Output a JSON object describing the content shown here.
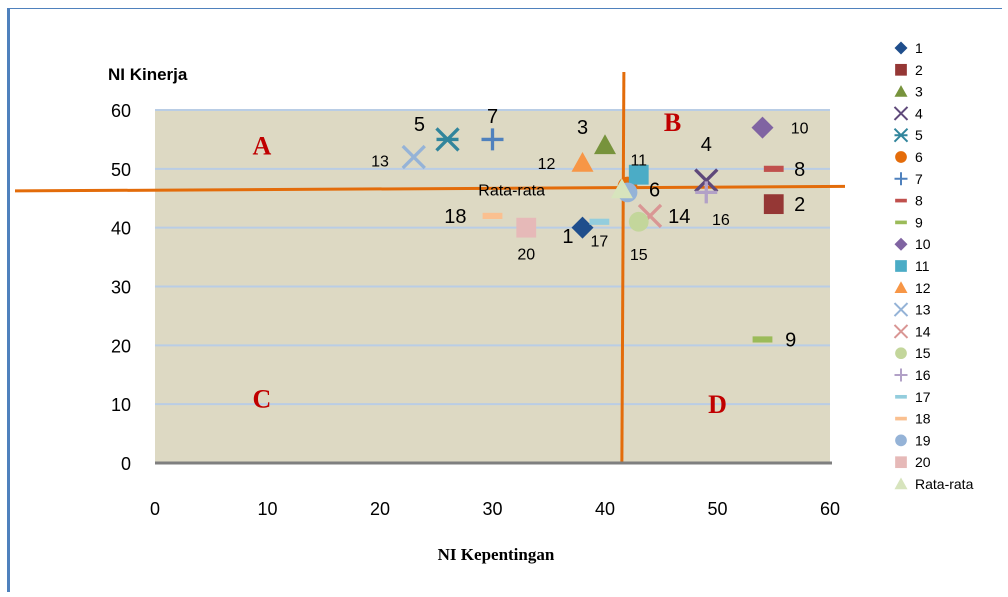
{
  "chart_data": {
    "type": "scatter",
    "xlabel": "NI Kepentingan",
    "ylabel": "NI Kinerja",
    "xlim": [
      0,
      60
    ],
    "ylim": [
      0,
      60
    ],
    "x_ticks": [
      0,
      10,
      20,
      30,
      40,
      50,
      60
    ],
    "y_ticks": [
      0,
      10,
      20,
      30,
      40,
      50,
      60
    ],
    "grid": "horizontal",
    "legend_position": "right",
    "plot_background": "#ddd9c3",
    "gridline_color": "#b9cde5",
    "quadrant_line_color": "#e36c0a",
    "quadrant_lines": {
      "x": 41.5,
      "y": 46.5
    },
    "quadrant_labels": [
      {
        "text": "A",
        "x": 9.5,
        "y": 54
      },
      {
        "text": "B",
        "x": 46,
        "y": 58
      },
      {
        "text": "C",
        "x": 9.5,
        "y": 11
      },
      {
        "text": "D",
        "x": 50,
        "y": 10
      }
    ],
    "quadrant_label_color": "#c00000",
    "series": [
      {
        "name": "1",
        "x": 38,
        "y": 40,
        "marker": "diamond",
        "color": "#1f4e8c",
        "label": "1",
        "label_dx": -1.3,
        "label_dy": -1.4
      },
      {
        "name": "2",
        "x": 55,
        "y": 44,
        "marker": "square",
        "color": "#953735",
        "label": "2",
        "label_dx": 2.3,
        "label_dy": 0
      },
      {
        "name": "3",
        "x": 40,
        "y": 54,
        "marker": "triangle",
        "color": "#77933c",
        "label": "3",
        "label_dx": -2,
        "label_dy": 3.1
      },
      {
        "name": "4",
        "x": 49,
        "y": 48,
        "marker": "x",
        "color": "#5f497a",
        "label": "4",
        "label_dx": 0,
        "label_dy": 6.2
      },
      {
        "name": "5",
        "x": 26,
        "y": 55,
        "marker": "asterisk",
        "color": "#31859c",
        "label": "5",
        "label_dx": -2.5,
        "label_dy": 2.6
      },
      {
        "name": "6",
        "x": 42,
        "y": 47,
        "marker": "circle",
        "color": "#e46c0a",
        "label": "6",
        "label_dx": 2.4,
        "label_dy": -0.5
      },
      {
        "name": "7",
        "x": 30,
        "y": 55,
        "marker": "plus",
        "color": "#4f81bd",
        "label": "7",
        "label_dx": 0,
        "label_dy": 4
      },
      {
        "name": "8",
        "x": 55,
        "y": 50,
        "marker": "dash",
        "color": "#c0504d",
        "label": "8",
        "label_dx": 2.3,
        "label_dy": 0
      },
      {
        "name": "9",
        "x": 54,
        "y": 21,
        "marker": "dash",
        "color": "#9bbb59",
        "label": "9",
        "label_dx": 2.5,
        "label_dy": 0
      },
      {
        "name": "10",
        "x": 54,
        "y": 57,
        "marker": "diamond",
        "color": "#8064a2",
        "label": "10",
        "label_dx": 3.3,
        "label_dy": 0
      },
      {
        "name": "11",
        "x": 43,
        "y": 49,
        "marker": "square",
        "color": "#4bacc6",
        "label": "11",
        "label_dx": 0,
        "label_dy": 2.6
      },
      {
        "name": "12",
        "x": 38,
        "y": 51,
        "marker": "triangle",
        "color": "#f79646",
        "label": "12",
        "label_dx": -3.2,
        "label_dy": 0
      },
      {
        "name": "13",
        "x": 23,
        "y": 52,
        "marker": "x",
        "color": "#95b3d7",
        "label": "13",
        "label_dx": -3,
        "label_dy": -0.6
      },
      {
        "name": "14",
        "x": 44,
        "y": 42,
        "marker": "x",
        "color": "#d99694",
        "label": "14",
        "label_dx": 2.6,
        "label_dy": 0
      },
      {
        "name": "15",
        "x": 43,
        "y": 41,
        "marker": "circle",
        "color": "#c3d69b",
        "label": "15",
        "label_dx": 0,
        "label_dy": -5.5
      },
      {
        "name": "16",
        "x": 49,
        "y": 46,
        "marker": "plus",
        "color": "#b2a1c7",
        "label": "16",
        "label_dx": 1.3,
        "label_dy": -4.5
      },
      {
        "name": "17",
        "x": 39.5,
        "y": 41,
        "marker": "dash",
        "color": "#93cddd",
        "label": "17",
        "label_dx": 0,
        "label_dy": -3.2
      },
      {
        "name": "18",
        "x": 30,
        "y": 42,
        "marker": "dash",
        "color": "#fac090",
        "label": "18",
        "label_dx": -3.3,
        "label_dy": 0
      },
      {
        "name": "19",
        "x": 42,
        "y": 46,
        "marker": "circle",
        "color": "#95b3d7",
        "label": "",
        "label_dx": 0,
        "label_dy": 0
      },
      {
        "name": "20",
        "x": 33,
        "y": 40,
        "marker": "square",
        "color": "#e6b9b8",
        "label": "20",
        "label_dx": 0,
        "label_dy": -4.4
      },
      {
        "name": "Rata-rata",
        "x": 41.5,
        "y": 46.5,
        "marker": "triangle",
        "color": "#d7e4bd",
        "label": "Rata-rata",
        "label_dx": -9.8,
        "label_dy": 0
      }
    ]
  }
}
